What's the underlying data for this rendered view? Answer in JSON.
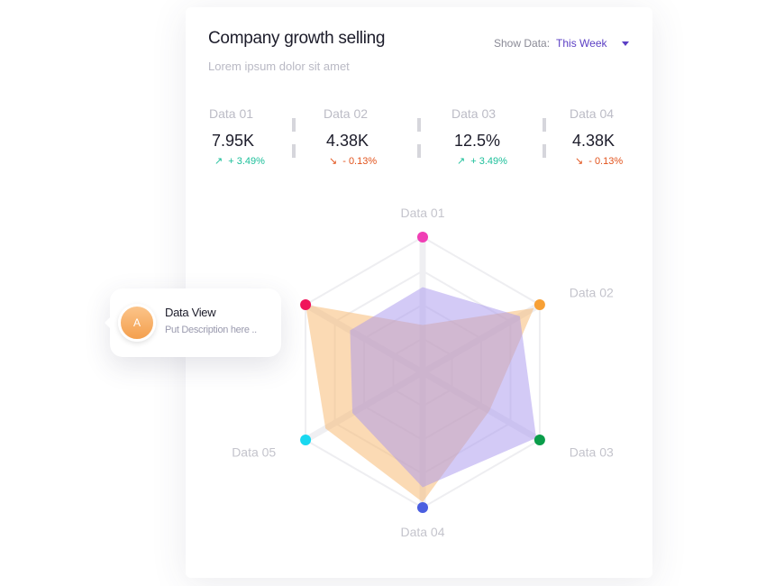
{
  "header": {
    "title": "Company growth selling",
    "subtitle": "Lorem ipsum dolor sit amet",
    "show_label": "Show Data:",
    "show_value": "This Week"
  },
  "stats": [
    {
      "label": "Data 01",
      "value": "7.95K",
      "change": "+ 3.49%",
      "trend": "up"
    },
    {
      "label": "Data 02",
      "value": "4.38K",
      "change": "- 0.13%",
      "trend": "down"
    },
    {
      "label": "Data 03",
      "value": "12.5%",
      "change": "+ 3.49%",
      "trend": "up"
    },
    {
      "label": "Data 04",
      "value": "4.38K",
      "change": "- 0.13%",
      "trend": "down"
    }
  ],
  "colors": {
    "up": "#1cbf9a",
    "down": "#e2531c",
    "accent": "#5b3fc4"
  },
  "tooltip": {
    "avatar": "A",
    "title": "Data View",
    "description": "Put Description here .."
  },
  "chart_data": {
    "type": "radar",
    "axes": [
      "Data 01",
      "Data 02",
      "Data 03",
      "Data 04",
      "Data 05",
      ""
    ],
    "axis_dot_colors": [
      "#f03fb5",
      "#f7a035",
      "#0a9d4a",
      "#4a5ee0",
      "#19d8f0",
      "#f0145a"
    ],
    "range": [
      0,
      1
    ],
    "grid": true,
    "series": [
      {
        "color": "#f7b56a",
        "values": [
          0.35,
          0.95,
          0.57,
          0.96,
          0.83,
          1.0
        ]
      },
      {
        "color": "#a796ee",
        "values": [
          0.63,
          0.83,
          0.97,
          0.85,
          0.6,
          0.62
        ]
      }
    ]
  }
}
